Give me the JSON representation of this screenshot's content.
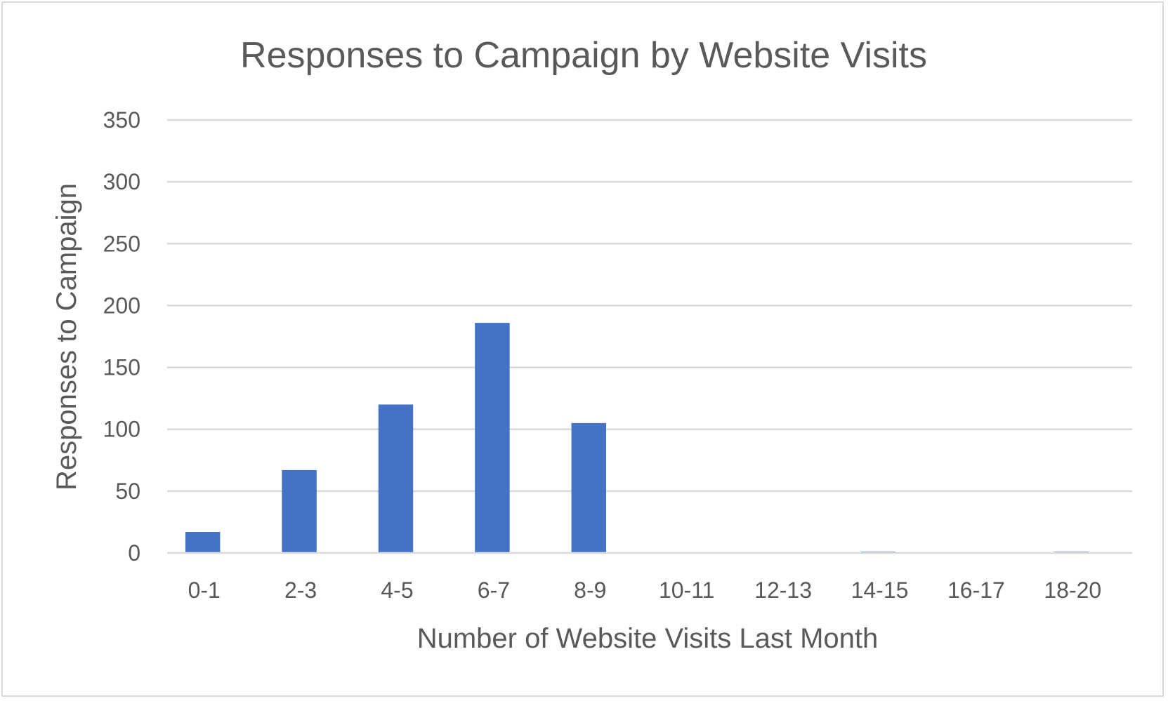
{
  "chart_data": {
    "type": "bar",
    "title": "Responses to Campaign by Website Visits",
    "xlabel": "Number of Website Visits Last Month",
    "ylabel": "Responses to Campaign",
    "categories": [
      "0-1",
      "2-3",
      "4-5",
      "6-7",
      "8-9",
      "10-11",
      "12-13",
      "14-15",
      "16-17",
      "18-20"
    ],
    "values": [
      17,
      67,
      120,
      186,
      105,
      0,
      0,
      1,
      0,
      1
    ],
    "ylim": [
      0,
      350
    ],
    "yticks": [
      0,
      50,
      100,
      150,
      200,
      250,
      300,
      350
    ],
    "grid": true,
    "legend": "none",
    "bar_color": "#4472C4",
    "grid_color": "#d9d9d9",
    "text_color": "#595959"
  }
}
